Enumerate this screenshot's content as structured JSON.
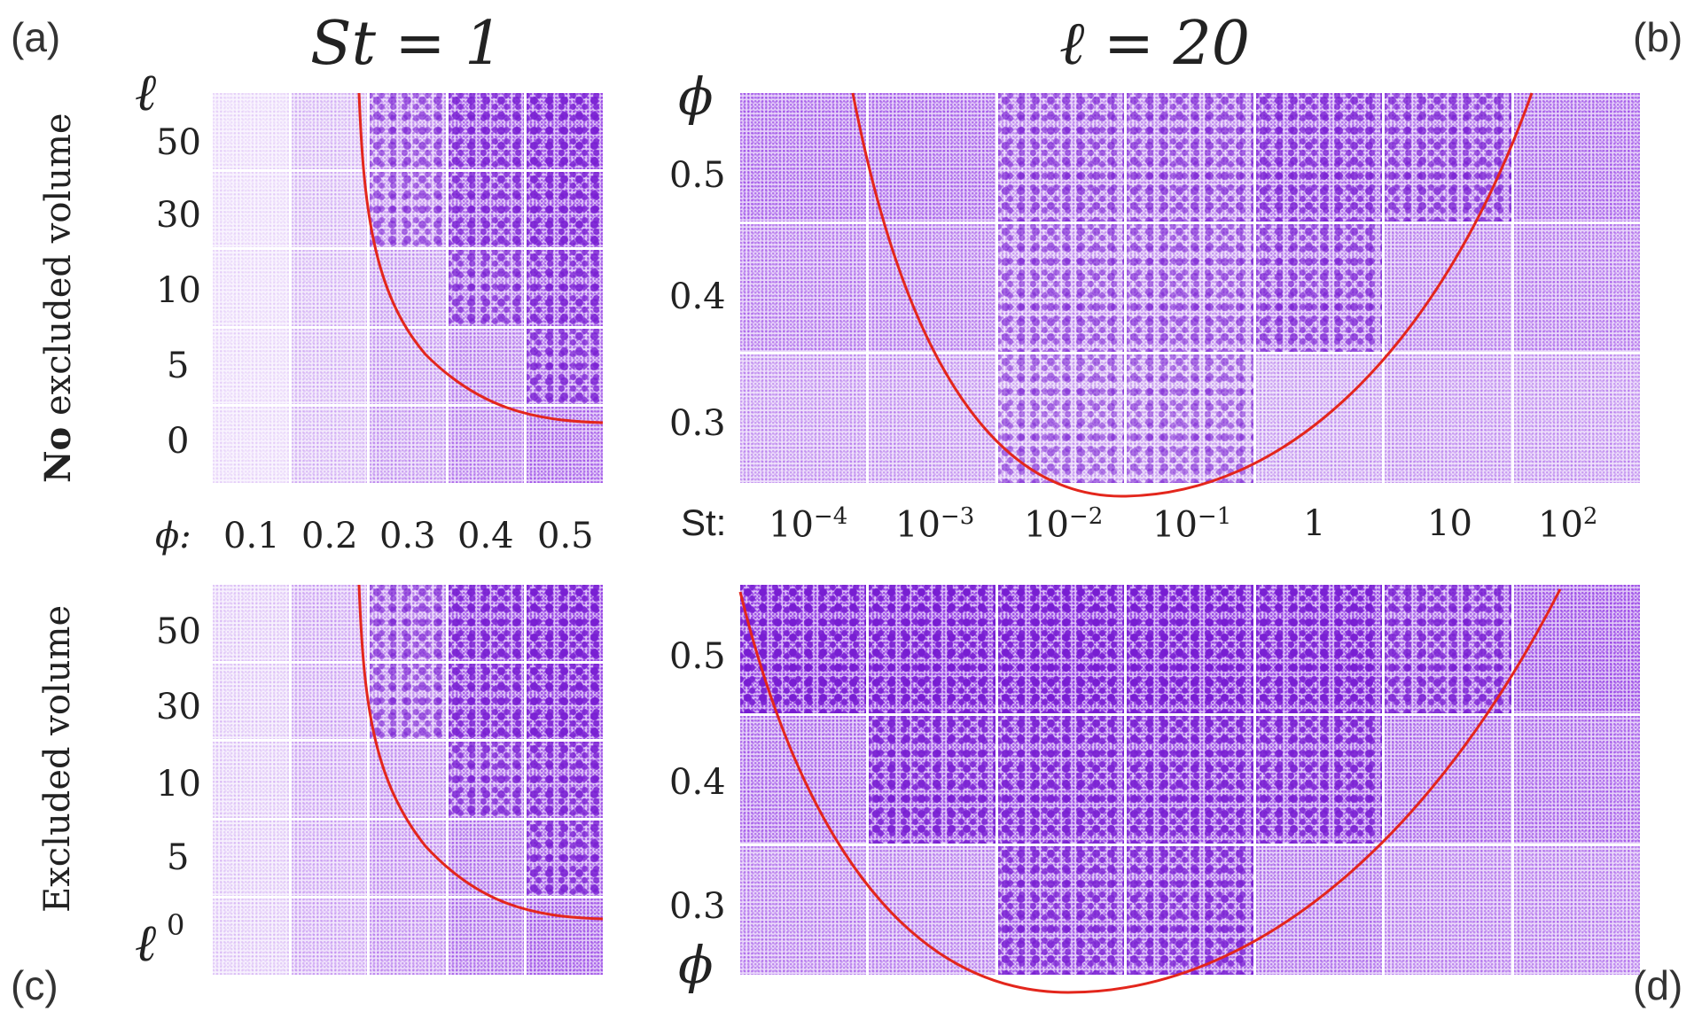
{
  "panel_labels": {
    "a": "(a)",
    "b": "(b)",
    "c": "(c)",
    "d": "(d)"
  },
  "titles": {
    "left": "St = 1",
    "right": "ℓ = 20"
  },
  "side_labels": {
    "top_bold": "No",
    "top_rest": " excluded volume",
    "bottom": "Excluded volume"
  },
  "axes": {
    "ell_symbol": "ℓ",
    "phi_symbol": "ϕ",
    "phi_x_prefix": "ϕ:",
    "phi_x_ticks": [
      "0.1",
      "0.2",
      "0.3",
      "0.4",
      "0.5"
    ],
    "ell_ticks": [
      "50",
      "30",
      "10",
      "5",
      "0"
    ],
    "st_prefix": "St:",
    "st_ticks": [
      {
        "base": "10",
        "exp": "−4"
      },
      {
        "base": "10",
        "exp": "−3"
      },
      {
        "base": "10",
        "exp": "−2"
      },
      {
        "base": "10",
        "exp": "−1"
      },
      {
        "base": "1",
        "exp": ""
      },
      {
        "base": "10",
        "exp": ""
      },
      {
        "base": "10",
        "exp": "2"
      }
    ],
    "phi_y_ticks": [
      "0.5",
      "0.4",
      "0.3"
    ]
  },
  "colors": {
    "particle": "#8a2be2",
    "curve": "#e3261c"
  },
  "chart_data": [
    {
      "type": "heatmap",
      "panel": "(a)",
      "title": "St = 1",
      "condition": "No excluded volume",
      "xlabel": "ϕ",
      "ylabel": "ℓ",
      "x": [
        0.1,
        0.2,
        0.3,
        0.4,
        0.5
      ],
      "y": [
        50,
        30,
        10,
        5,
        0
      ],
      "density": [
        [
          0.1,
          0.2,
          0.35,
          0.55,
          0.62
        ],
        [
          0.1,
          0.2,
          0.33,
          0.52,
          0.6
        ],
        [
          0.1,
          0.2,
          0.3,
          0.45,
          0.55
        ],
        [
          0.1,
          0.2,
          0.3,
          0.4,
          0.5
        ],
        [
          0.1,
          0.2,
          0.3,
          0.4,
          0.5
        ]
      ],
      "clustered": [
        [
          false,
          false,
          true,
          true,
          true
        ],
        [
          false,
          false,
          true,
          true,
          true
        ],
        [
          false,
          false,
          false,
          true,
          true
        ],
        [
          false,
          false,
          false,
          false,
          true
        ],
        [
          false,
          false,
          false,
          false,
          false
        ]
      ]
    },
    {
      "type": "heatmap",
      "panel": "(b)",
      "title": "ℓ = 20",
      "condition": "No excluded volume",
      "xlabel": "St",
      "ylabel": "ϕ",
      "x": [
        "1e-4",
        "1e-3",
        "1e-2",
        "1e-1",
        "1",
        "10",
        "1e2"
      ],
      "y": [
        0.5,
        0.4,
        0.3
      ],
      "density": [
        [
          0.5,
          0.5,
          0.38,
          0.38,
          0.5,
          0.45,
          0.5
        ],
        [
          0.42,
          0.42,
          0.33,
          0.33,
          0.42,
          0.4,
          0.42
        ],
        [
          0.32,
          0.32,
          0.28,
          0.28,
          0.3,
          0.32,
          0.32
        ]
      ],
      "clustered": [
        [
          false,
          false,
          true,
          true,
          true,
          true,
          false
        ],
        [
          false,
          false,
          true,
          true,
          true,
          false,
          false
        ],
        [
          false,
          false,
          true,
          true,
          false,
          false,
          false
        ]
      ]
    },
    {
      "type": "heatmap",
      "panel": "(c)",
      "title": "St = 1",
      "condition": "Excluded volume",
      "xlabel": "ϕ",
      "ylabel": "ℓ",
      "x": [
        0.1,
        0.2,
        0.3,
        0.4,
        0.5
      ],
      "y": [
        50,
        30,
        10,
        5,
        0
      ],
      "density": [
        [
          0.15,
          0.25,
          0.38,
          0.62,
          0.68
        ],
        [
          0.15,
          0.25,
          0.36,
          0.6,
          0.66
        ],
        [
          0.15,
          0.25,
          0.33,
          0.5,
          0.58
        ],
        [
          0.15,
          0.25,
          0.33,
          0.45,
          0.55
        ],
        [
          0.15,
          0.25,
          0.33,
          0.45,
          0.55
        ]
      ],
      "clustered": [
        [
          false,
          false,
          true,
          true,
          true
        ],
        [
          false,
          false,
          true,
          true,
          true
        ],
        [
          false,
          false,
          false,
          true,
          true
        ],
        [
          false,
          false,
          false,
          false,
          true
        ],
        [
          false,
          false,
          false,
          false,
          false
        ]
      ]
    },
    {
      "type": "heatmap",
      "panel": "(d)",
      "title": "ℓ = 20",
      "condition": "Excluded volume",
      "xlabel": "St",
      "ylabel": "ϕ",
      "x": [
        "1e-4",
        "1e-3",
        "1e-2",
        "1e-1",
        "1",
        "10",
        "1e2"
      ],
      "y": [
        0.5,
        0.4,
        0.3
      ],
      "density": [
        [
          0.7,
          0.7,
          0.7,
          0.7,
          0.68,
          0.55,
          0.6
        ],
        [
          0.5,
          0.62,
          0.62,
          0.62,
          0.6,
          0.5,
          0.5
        ],
        [
          0.4,
          0.4,
          0.55,
          0.55,
          0.45,
          0.4,
          0.4
        ]
      ],
      "clustered": [
        [
          true,
          true,
          true,
          true,
          true,
          true,
          false
        ],
        [
          false,
          true,
          true,
          true,
          true,
          false,
          false
        ],
        [
          false,
          false,
          true,
          true,
          false,
          false,
          false
        ]
      ]
    }
  ]
}
